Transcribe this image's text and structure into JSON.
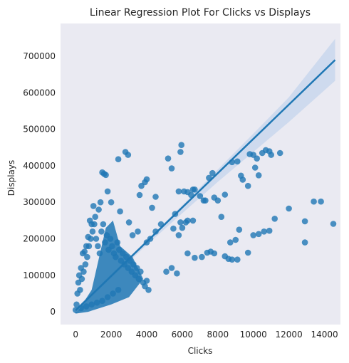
{
  "chart_data": {
    "type": "scatter",
    "title": "Linear Regression Plot For Clicks vs Displays",
    "xlabel": "Clicks",
    "ylabel": "Displays",
    "xlim": [
      -850,
      14900
    ],
    "ylim": [
      -35000,
      790000
    ],
    "x_ticks": [
      0,
      2000,
      4000,
      6000,
      8000,
      10000,
      12000,
      14000
    ],
    "y_ticks": [
      0,
      100000,
      200000,
      300000,
      400000,
      500000,
      600000,
      700000
    ],
    "grid": false,
    "background": "#eaeaf2",
    "colors": {
      "points": "#1f77b4",
      "line": "#1f77b4",
      "band": "#aec7e8"
    },
    "regression": {
      "x": [
        0,
        14600
      ],
      "y": [
        4000,
        690000
      ],
      "ci_upper": [
        [
          0,
          9000
        ],
        [
          2000,
          103000
        ],
        [
          4000,
          196000
        ],
        [
          6000,
          292000
        ],
        [
          8000,
          390000
        ],
        [
          10000,
          488000
        ],
        [
          12000,
          588000
        ],
        [
          14600,
          748000
        ]
      ],
      "ci_lower": [
        [
          0,
          -1000
        ],
        [
          2000,
          92000
        ],
        [
          4000,
          183000
        ],
        [
          6000,
          270000
        ],
        [
          8000,
          356000
        ],
        [
          10000,
          438000
        ],
        [
          12000,
          520000
        ],
        [
          14600,
          633000
        ]
      ]
    },
    "points": [
      [
        2800,
        438000
      ],
      [
        2950,
        430000
      ],
      [
        2400,
        418000
      ],
      [
        5950,
        457000
      ],
      [
        5900,
        438000
      ],
      [
        5200,
        420000
      ],
      [
        5400,
        393000
      ],
      [
        3900,
        355000
      ],
      [
        4000,
        363000
      ],
      [
        3700,
        345000
      ],
      [
        3600,
        320000
      ],
      [
        4500,
        315000
      ],
      [
        5800,
        330000
      ],
      [
        6100,
        330000
      ],
      [
        6300,
        328000
      ],
      [
        6500,
        320000
      ],
      [
        6600,
        335000
      ],
      [
        6700,
        335000
      ],
      [
        7000,
        317000
      ],
      [
        7200,
        305000
      ],
      [
        7300,
        305000
      ],
      [
        7500,
        367000
      ],
      [
        7700,
        380000
      ],
      [
        7800,
        313000
      ],
      [
        8000,
        305000
      ],
      [
        8400,
        321000
      ],
      [
        8800,
        410000
      ],
      [
        9100,
        412000
      ],
      [
        9300,
        373000
      ],
      [
        9400,
        362000
      ],
      [
        9700,
        345000
      ],
      [
        9800,
        432000
      ],
      [
        10000,
        430000
      ],
      [
        10100,
        395000
      ],
      [
        10200,
        420000
      ],
      [
        10300,
        374000
      ],
      [
        10500,
        435000
      ],
      [
        10700,
        443000
      ],
      [
        10900,
        440000
      ],
      [
        11000,
        430000
      ],
      [
        11500,
        435000
      ],
      [
        11200,
        255000
      ],
      [
        12000,
        283000
      ],
      [
        12900,
        248000
      ],
      [
        13400,
        302000
      ],
      [
        13800,
        302000
      ],
      [
        14500,
        241000
      ],
      [
        12900,
        190000
      ],
      [
        10900,
        222000
      ],
      [
        10600,
        220000
      ],
      [
        10300,
        213000
      ],
      [
        10000,
        210000
      ],
      [
        9200,
        225000
      ],
      [
        9000,
        197000
      ],
      [
        8700,
        190000
      ],
      [
        8400,
        152000
      ],
      [
        8600,
        145000
      ],
      [
        8800,
        143000
      ],
      [
        9100,
        143000
      ],
      [
        9700,
        162000
      ],
      [
        8200,
        260000
      ],
      [
        7800,
        160000
      ],
      [
        7600,
        165000
      ],
      [
        7400,
        162000
      ],
      [
        7100,
        150000
      ],
      [
        6700,
        148000
      ],
      [
        6300,
        160000
      ],
      [
        5800,
        210000
      ],
      [
        5900,
        245000
      ],
      [
        5600,
        268000
      ],
      [
        5500,
        228000
      ],
      [
        6000,
        230000
      ],
      [
        6200,
        245000
      ],
      [
        6300,
        250000
      ],
      [
        6600,
        250000
      ],
      [
        4800,
        240000
      ],
      [
        4500,
        220000
      ],
      [
        4200,
        200000
      ],
      [
        4000,
        190000
      ],
      [
        3500,
        220000
      ],
      [
        3200,
        210000
      ],
      [
        3000,
        245000
      ],
      [
        2500,
        275000
      ],
      [
        4300,
        285000
      ],
      [
        2000,
        300000
      ],
      [
        1800,
        330000
      ],
      [
        1700,
        375000
      ],
      [
        1600,
        378000
      ],
      [
        1500,
        382000
      ],
      [
        1400,
        300000
      ],
      [
        1300,
        280000
      ],
      [
        1100,
        260000
      ],
      [
        1000,
        290000
      ],
      [
        900,
        240000
      ],
      [
        800,
        250000
      ],
      [
        700,
        205000
      ],
      [
        600,
        180000
      ],
      [
        500,
        165000
      ],
      [
        400,
        160000
      ],
      [
        300,
        120000
      ],
      [
        200,
        100000
      ],
      [
        150,
        80000
      ],
      [
        100,
        50000
      ],
      [
        50,
        20000
      ],
      [
        0,
        5000
      ],
      [
        250,
        60000
      ],
      [
        350,
        90000
      ],
      [
        450,
        110000
      ],
      [
        550,
        130000
      ],
      [
        650,
        150000
      ],
      [
        750,
        180000
      ],
      [
        850,
        200000
      ],
      [
        950,
        220000
      ],
      [
        1050,
        240000
      ],
      [
        1150,
        200000
      ],
      [
        1250,
        180000
      ],
      [
        1350,
        160000
      ],
      [
        1450,
        220000
      ],
      [
        1550,
        240000
      ],
      [
        1650,
        190000
      ],
      [
        1750,
        210000
      ],
      [
        1850,
        170000
      ],
      [
        1950,
        200000
      ],
      [
        2050,
        180000
      ],
      [
        2150,
        160000
      ],
      [
        2250,
        150000
      ],
      [
        2350,
        190000
      ],
      [
        2450,
        170000
      ],
      [
        2550,
        140000
      ],
      [
        2650,
        160000
      ],
      [
        2750,
        130000
      ],
      [
        2850,
        150000
      ],
      [
        2950,
        120000
      ],
      [
        3050,
        140000
      ],
      [
        3150,
        110000
      ],
      [
        3250,
        130000
      ],
      [
        3350,
        100000
      ],
      [
        3450,
        120000
      ],
      [
        3550,
        90000
      ],
      [
        3650,
        110000
      ],
      [
        3800,
        80000
      ],
      [
        3900,
        70000
      ],
      [
        4000,
        85000
      ],
      [
        4100,
        60000
      ],
      [
        5100,
        110000
      ],
      [
        5400,
        120000
      ],
      [
        5700,
        105000
      ],
      [
        2100,
        50000
      ],
      [
        1800,
        40000
      ],
      [
        1500,
        30000
      ],
      [
        1200,
        25000
      ],
      [
        900,
        20000
      ],
      [
        600,
        15000
      ],
      [
        300,
        10000
      ],
      [
        2400,
        60000
      ]
    ]
  }
}
